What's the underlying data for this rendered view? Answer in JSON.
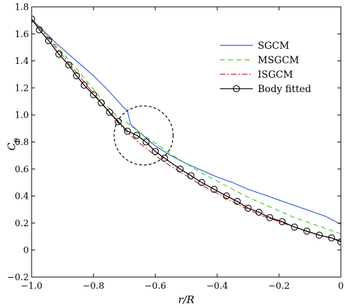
{
  "chart_data": {
    "type": "line",
    "title": "",
    "xlabel": "r/R",
    "ylabel": "C_p",
    "xlim": [
      -1.0,
      0.0
    ],
    "ylim": [
      -0.2,
      1.8
    ],
    "x_ticks": [
      -1.0,
      -0.8,
      -0.6,
      -0.4,
      -0.2,
      0.0
    ],
    "x_tick_labels": [
      "−1.0",
      "−0.8",
      "−0.6",
      "−0.4",
      "−0.2",
      "0"
    ],
    "y_ticks": [
      -0.2,
      0.0,
      0.2,
      0.4,
      0.6,
      0.8,
      1.0,
      1.2,
      1.4,
      1.6,
      1.8
    ],
    "y_tick_labels": [
      "−0.2",
      "0",
      "0.2",
      "0.4",
      "0.6",
      "0.8",
      "1.0",
      "1.2",
      "1.4",
      "1.6",
      "1.8"
    ],
    "grid": false,
    "legend_position": "upper-right",
    "annotation": "dashed circle around the discontinuity near r/R = -0.69",
    "series": [
      {
        "name": "SGCM",
        "color": "#3a5bd9",
        "style": "solid",
        "marker": "none",
        "x": [
          -1.0,
          -0.96,
          -0.92,
          -0.88,
          -0.84,
          -0.8,
          -0.76,
          -0.72,
          -0.7,
          -0.69,
          -0.68,
          -0.66,
          -0.64,
          -0.6,
          -0.55,
          -0.5,
          -0.45,
          -0.4,
          -0.35,
          -0.3,
          -0.25,
          -0.2,
          -0.15,
          -0.1,
          -0.05,
          0.0
        ],
        "y": [
          1.71,
          1.62,
          1.53,
          1.45,
          1.37,
          1.29,
          1.2,
          1.1,
          1.05,
          1.03,
          0.93,
          0.89,
          0.85,
          0.77,
          0.7,
          0.64,
          0.59,
          0.54,
          0.5,
          0.45,
          0.41,
          0.37,
          0.33,
          0.29,
          0.25,
          0.19
        ]
      },
      {
        "name": "MSGCM",
        "color": "#44cc22",
        "style": "dashed",
        "marker": "none",
        "x": [
          -1.0,
          -0.95,
          -0.9,
          -0.85,
          -0.8,
          -0.75,
          -0.71,
          -0.69,
          -0.68,
          -0.65,
          -0.6,
          -0.55,
          -0.5,
          -0.45,
          -0.4,
          -0.35,
          -0.3,
          -0.25,
          -0.2,
          -0.15,
          -0.1,
          -0.05,
          0.0
        ],
        "y": [
          1.71,
          1.59,
          1.46,
          1.33,
          1.19,
          1.05,
          0.96,
          0.94,
          0.92,
          0.87,
          0.79,
          0.71,
          0.64,
          0.57,
          0.51,
          0.45,
          0.39,
          0.34,
          0.29,
          0.24,
          0.2,
          0.16,
          0.12
        ]
      },
      {
        "name": "ISGCM",
        "color": "#cc2222",
        "style": "dashdot",
        "marker": "none",
        "x": [
          -1.0,
          -0.95,
          -0.9,
          -0.85,
          -0.8,
          -0.75,
          -0.7,
          -0.65,
          -0.6,
          -0.55,
          -0.5,
          -0.45,
          -0.4,
          -0.35,
          -0.3,
          -0.25,
          -0.2,
          -0.15,
          -0.1,
          -0.05,
          0.0
        ],
        "y": [
          1.71,
          1.58,
          1.44,
          1.3,
          1.16,
          1.02,
          0.89,
          0.79,
          0.7,
          0.62,
          0.55,
          0.48,
          0.42,
          0.36,
          0.3,
          0.25,
          0.21,
          0.17,
          0.13,
          0.1,
          0.07
        ]
      },
      {
        "name": "Body fitted",
        "color": "#000000",
        "style": "solid",
        "marker": "circle",
        "x": [
          -1.0,
          -0.975,
          -0.945,
          -0.912,
          -0.88,
          -0.855,
          -0.83,
          -0.8,
          -0.775,
          -0.748,
          -0.72,
          -0.69,
          -0.66,
          -0.63,
          -0.6,
          -0.57,
          -0.52,
          -0.485,
          -0.45,
          -0.41,
          -0.37,
          -0.335,
          -0.3,
          -0.265,
          -0.23,
          -0.19,
          -0.15,
          -0.11,
          -0.07,
          -0.03,
          0.0
        ],
        "y": [
          1.71,
          1.63,
          1.55,
          1.45,
          1.37,
          1.29,
          1.22,
          1.15,
          1.09,
          1.02,
          0.95,
          0.88,
          0.85,
          0.8,
          0.73,
          0.68,
          0.6,
          0.55,
          0.5,
          0.45,
          0.4,
          0.36,
          0.31,
          0.28,
          0.24,
          0.21,
          0.17,
          0.14,
          0.11,
          0.09,
          0.06
        ]
      }
    ]
  },
  "legend": {
    "items": [
      "SGCM",
      "MSGCM",
      "ISGCM",
      "Body fitted"
    ]
  }
}
